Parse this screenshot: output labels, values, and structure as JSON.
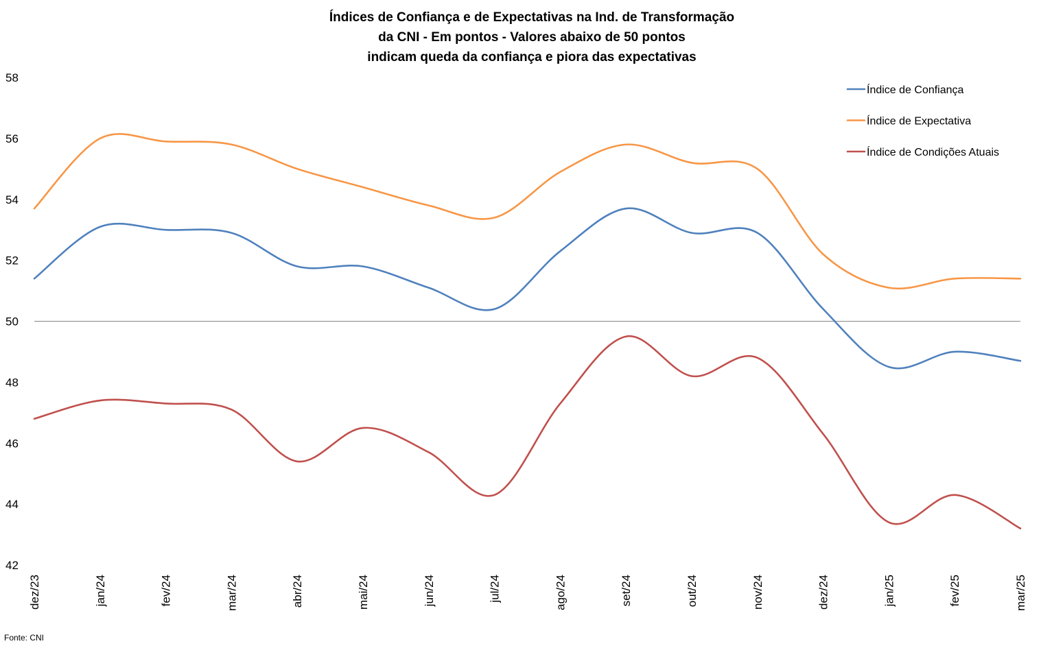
{
  "chart_data": {
    "type": "line",
    "title_lines": [
      "Índices de Confiança e de Expectativas na Ind. de Transformação",
      "da CNI - Em pontos - Valores abaixo de 50 pontos",
      "indicam queda da confiança e piora das expectativas"
    ],
    "categories": [
      "dez/23",
      "jan/24",
      "fev/24",
      "mar/24",
      "abr/24",
      "mai/24",
      "jun/24",
      "jul/24",
      "ago/24",
      "set/24",
      "out/24",
      "nov/24",
      "dez/24",
      "jan/25",
      "fev/25",
      "mar/25"
    ],
    "series": [
      {
        "name": "Índice de Confiança",
        "color": "#4f81bd",
        "values": [
          51.4,
          53.1,
          53.0,
          52.9,
          51.8,
          51.8,
          51.1,
          50.4,
          52.3,
          53.7,
          52.9,
          52.9,
          50.4,
          48.5,
          49.0,
          48.7
        ]
      },
      {
        "name": "Índice de Expectativa",
        "color": "#f79646",
        "values": [
          53.7,
          56.0,
          55.9,
          55.8,
          55.0,
          54.4,
          53.8,
          53.4,
          54.9,
          55.8,
          55.2,
          55.0,
          52.2,
          51.1,
          51.4,
          51.4
        ]
      },
      {
        "name": "Índice de Condições Atuais",
        "color": "#c0504d",
        "values": [
          46.8,
          47.4,
          47.3,
          47.1,
          45.4,
          46.5,
          45.7,
          44.3,
          47.3,
          49.5,
          48.2,
          48.8,
          46.3,
          43.4,
          44.3,
          43.2
        ]
      }
    ],
    "ylim": [
      42,
      58
    ],
    "yticks": [
      42,
      44,
      46,
      48,
      50,
      52,
      54,
      56,
      58
    ],
    "reference_line": 50,
    "grid": false,
    "legend_position": "top-right",
    "source": "Fonte: CNI"
  }
}
